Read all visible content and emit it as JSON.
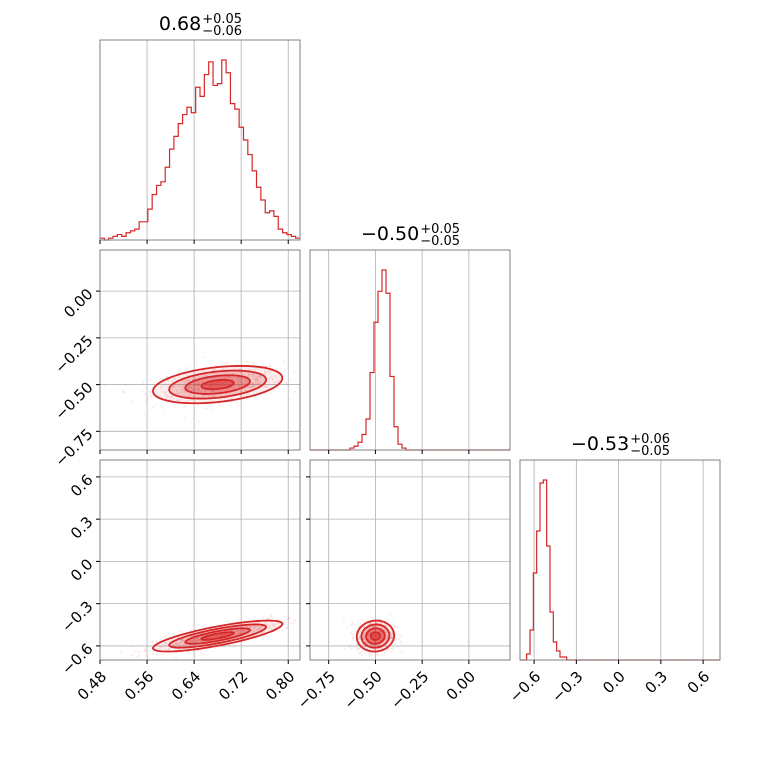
{
  "chart_data": {
    "type": "corner",
    "params": 3,
    "color": "#d62728",
    "grid": true,
    "titles": [
      {
        "median": "0.68",
        "plus": "+0.05",
        "minus": "−0.06"
      },
      {
        "median": "−0.50",
        "plus": "+0.05",
        "minus": "−0.05"
      },
      {
        "median": "−0.53",
        "plus": "+0.06",
        "minus": "−0.05"
      }
    ],
    "ranges": [
      [
        0.48,
        0.82
      ],
      [
        -0.85,
        0.22
      ],
      [
        -0.7,
        0.72
      ]
    ],
    "ticks": [
      {
        "values": [
          0.48,
          0.56,
          0.64,
          0.72,
          0.8
        ],
        "labels": [
          "0.48",
          "0.56",
          "0.64",
          "0.72",
          "0.80"
        ]
      },
      {
        "values": [
          -0.75,
          -0.5,
          -0.25,
          0.0
        ],
        "labels": [
          "−0.75",
          "−0.50",
          "−0.25",
          "0.00"
        ]
      },
      {
        "values": [
          -0.6,
          -0.3,
          0.0,
          0.3,
          0.6
        ],
        "labels": [
          "−0.6",
          "−0.3",
          "0.0",
          "0.3",
          "0.6"
        ]
      }
    ],
    "histograms": [
      {
        "edges_start": 0.48,
        "edges_end": 0.82,
        "counts": [
          1,
          0,
          1,
          2,
          3,
          2,
          4,
          5,
          6,
          10,
          10,
          17,
          25,
          30,
          32,
          40,
          50,
          57,
          64,
          69,
          73,
          70,
          84,
          79,
          91,
          98,
          85,
          86,
          99,
          92,
          75,
          72,
          62,
          55,
          47,
          38,
          29,
          22,
          15,
          16,
          13,
          6,
          4,
          3,
          2,
          1
        ]
      },
      {
        "edges_start": -0.85,
        "edges_end": 0.22,
        "counts": [
          0,
          0,
          0,
          0,
          0,
          0,
          0,
          0,
          0,
          0,
          1,
          2,
          4,
          8,
          16,
          40,
          66,
          82,
          93,
          81,
          38,
          12,
          3,
          1,
          0,
          0,
          0,
          0,
          0,
          0,
          0,
          0,
          0,
          0,
          0,
          0,
          0,
          0,
          0,
          0,
          0,
          0,
          0,
          0,
          0,
          0,
          0,
          0,
          0,
          0
        ]
      },
      {
        "edges_start": -0.7,
        "edges_end": 0.72,
        "counts": [
          0,
          0,
          2,
          10,
          29,
          43,
          59,
          60,
          38,
          16,
          6,
          3,
          1,
          1,
          0,
          0,
          0,
          0,
          0,
          0,
          0,
          0,
          0,
          0,
          0,
          0,
          0,
          0,
          0,
          0,
          0,
          0,
          0,
          0,
          0,
          0,
          0,
          0,
          0,
          0,
          0,
          0,
          0,
          0,
          0,
          0,
          0,
          0,
          0,
          0,
          0,
          0,
          0,
          0,
          0,
          0,
          0,
          0,
          0,
          0
        ]
      }
    ],
    "joint": [
      {
        "x_param": 0,
        "y_param": 1,
        "center": [
          0.68,
          -0.5
        ],
        "sd": [
          0.055,
          0.05
        ],
        "corr": 0.35
      },
      {
        "x_param": 0,
        "y_param": 2,
        "center": [
          0.68,
          -0.53
        ],
        "sd": [
          0.055,
          0.055
        ],
        "corr": 0.78
      },
      {
        "x_param": 1,
        "y_param": 2,
        "center": [
          -0.5,
          -0.53
        ],
        "sd": [
          0.05,
          0.055
        ],
        "corr": 0.05
      }
    ],
    "contour_levels_sigma": [
      0.5,
      1.0,
      1.5,
      2.0
    ]
  }
}
